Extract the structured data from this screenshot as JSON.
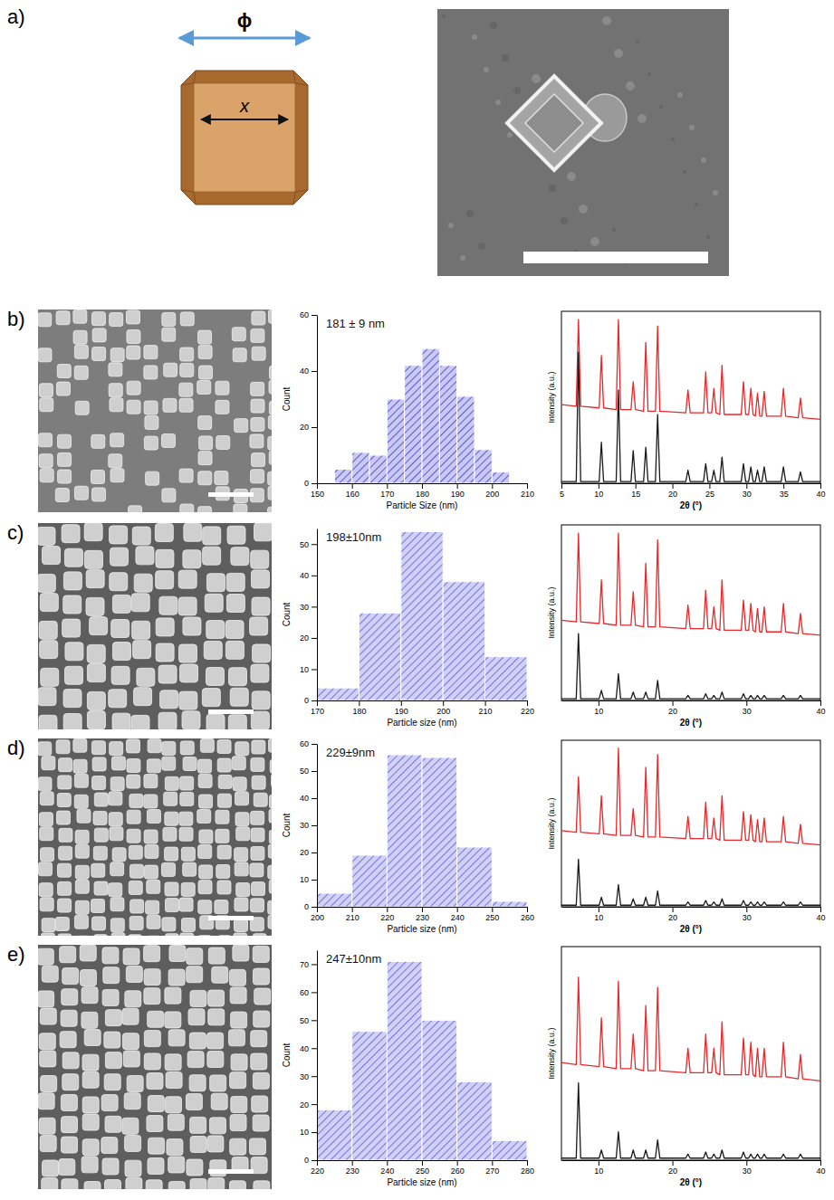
{
  "panels": {
    "labels": [
      "a)",
      "b)",
      "c)",
      "d)",
      "e)"
    ],
    "diagram_labels": [
      "ϕ",
      "x"
    ]
  },
  "chart_data": [
    {
      "type": "histogram",
      "title": "181 ± 9 nm",
      "x_label": "Particle Size (nm)",
      "y_label": "Count",
      "color": "#3b3bd1",
      "bins": [
        155,
        160,
        165,
        170,
        175,
        180,
        185,
        190,
        195,
        200,
        205
      ],
      "values": [
        5,
        11,
        10,
        30,
        42,
        48,
        42,
        31,
        12,
        4
      ],
      "xlim": [
        150,
        210
      ],
      "xticks": [
        150,
        160,
        170,
        180,
        190,
        200,
        210
      ],
      "ylim": [
        0,
        60
      ],
      "yticks": [
        0,
        20,
        40,
        60
      ]
    },
    {
      "type": "line",
      "x_label": "2θ (°)",
      "y_label": "Intensity (a.u.)",
      "tick_labels": "x",
      "x": [
        5,
        7.0,
        7.3,
        7.6,
        10.1,
        10.4,
        10.7,
        12.4,
        12.7,
        13.0,
        14.4,
        14.7,
        15.0,
        16.1,
        16.4,
        16.7,
        17.7,
        18.0,
        18.3,
        21.8,
        22.1,
        22.4,
        24.2,
        24.5,
        24.8,
        25.3,
        25.6,
        25.9,
        26.4,
        26.7,
        27.0,
        29.3,
        29.6,
        29.9,
        30.3,
        30.6,
        30.9,
        31.2,
        31.5,
        31.8,
        32.1,
        32.4,
        32.7,
        34.7,
        35.0,
        35.3,
        37.0,
        37.3,
        37.6,
        40
      ],
      "series": [
        {
          "color": "#e8282b",
          "values": [
            48,
            47,
            100,
            47,
            46,
            78,
            46,
            45,
            100,
            45,
            45,
            62,
            45,
            44,
            86,
            44,
            44,
            96,
            44,
            43,
            57,
            43,
            43,
            68,
            43,
            43,
            58,
            43,
            42,
            72,
            42,
            42,
            62,
            42,
            42,
            58,
            42,
            41,
            55,
            41,
            41,
            56,
            41,
            41,
            58,
            41,
            40,
            52,
            40,
            39
          ]
        },
        {
          "color": "#1a1a1a",
          "values": [
            1,
            1,
            80,
            1,
            1,
            25,
            1,
            1,
            57,
            1,
            1,
            20,
            1,
            1,
            22,
            1,
            1,
            42,
            1,
            1,
            8,
            1,
            1,
            12,
            1,
            1,
            8,
            1,
            1,
            16,
            1,
            1,
            12,
            1,
            1,
            10,
            1,
            1,
            8,
            1,
            1,
            10,
            1,
            1,
            10,
            1,
            1,
            7,
            1,
            1
          ]
        }
      ],
      "xlim": [
        5,
        40
      ],
      "xticks": [
        5,
        10,
        15,
        20,
        25,
        30,
        35,
        40
      ],
      "ylim": [
        0,
        105
      ]
    },
    {
      "type": "histogram",
      "title": "198±10nm",
      "x_label": "Particle size (nm)",
      "y_label": "Count",
      "color": "#5a5ae0",
      "bins": [
        170,
        180,
        190,
        200,
        210,
        220
      ],
      "values": [
        4,
        28,
        54,
        38,
        14
      ],
      "xlim": [
        170,
        220
      ],
      "xticks": [
        170,
        180,
        190,
        200,
        210,
        220
      ],
      "ylim": [
        0,
        55
      ],
      "yticks": [
        0,
        10,
        20,
        30,
        40,
        50
      ]
    },
    {
      "type": "line",
      "x_label": "2θ (°)",
      "y_label": "Intensity (a.u.)",
      "tick_labels": "x",
      "x": [
        5,
        7.0,
        7.3,
        7.6,
        10.1,
        10.4,
        10.7,
        12.4,
        12.7,
        13.0,
        14.4,
        14.7,
        15.0,
        16.1,
        16.4,
        16.7,
        17.7,
        18.0,
        18.3,
        21.8,
        22.1,
        22.4,
        24.2,
        24.5,
        24.8,
        25.3,
        25.6,
        25.9,
        26.4,
        26.7,
        27.0,
        29.3,
        29.6,
        29.9,
        30.3,
        30.6,
        30.9,
        31.2,
        31.5,
        31.8,
        32.1,
        32.4,
        32.7,
        34.7,
        35.0,
        35.3,
        37.0,
        37.3,
        37.6,
        40
      ],
      "series": [
        {
          "color": "#e8282b",
          "values": [
            48,
            47,
            100,
            47,
            46,
            72,
            46,
            45,
            100,
            45,
            45,
            65,
            45,
            44,
            82,
            44,
            44,
            96,
            44,
            43,
            57,
            43,
            43,
            66,
            43,
            43,
            56,
            43,
            42,
            72,
            42,
            42,
            60,
            42,
            42,
            58,
            42,
            41,
            55,
            41,
            41,
            56,
            41,
            41,
            58,
            41,
            40,
            52,
            40,
            39
          ]
        },
        {
          "color": "#1a1a1a",
          "values": [
            1,
            1,
            40,
            1,
            1,
            6,
            1,
            1,
            16,
            1,
            1,
            5,
            1,
            1,
            5,
            1,
            1,
            12,
            1,
            1,
            3,
            1,
            1,
            4,
            1,
            1,
            3,
            1,
            1,
            5,
            1,
            1,
            4,
            1,
            1,
            3,
            1,
            1,
            3,
            1,
            1,
            3,
            1,
            1,
            3,
            1,
            1,
            3,
            1,
            1
          ]
        }
      ],
      "xlim": [
        5,
        40
      ],
      "xticks": [
        10,
        20,
        30,
        40
      ],
      "ylim": [
        0,
        105
      ]
    },
    {
      "type": "histogram",
      "title": "229±9nm",
      "x_label": "Particle size (nm)",
      "y_label": "Count",
      "color": "#5a5ae0",
      "bins": [
        200,
        210,
        220,
        230,
        240,
        250,
        260
      ],
      "values": [
        5,
        19,
        56,
        55,
        22,
        2
      ],
      "xlim": [
        200,
        260
      ],
      "xticks": [
        200,
        210,
        220,
        230,
        240,
        250,
        260
      ],
      "ylim": [
        0,
        60
      ],
      "yticks": [
        0,
        10,
        20,
        30,
        40,
        50,
        60
      ]
    },
    {
      "type": "line",
      "x_label": "2θ (°)",
      "y_label": "Intensity (a.u.)",
      "tick_labels": "x",
      "x": [
        5,
        7.0,
        7.3,
        7.6,
        10.1,
        10.4,
        10.7,
        12.4,
        12.7,
        13.0,
        14.4,
        14.7,
        15.0,
        16.1,
        16.4,
        16.7,
        17.7,
        18.0,
        18.3,
        21.8,
        22.1,
        22.4,
        24.2,
        24.5,
        24.8,
        25.3,
        25.6,
        25.9,
        26.4,
        26.7,
        27.0,
        29.3,
        29.6,
        29.9,
        30.3,
        30.6,
        30.9,
        31.2,
        31.5,
        31.8,
        32.1,
        32.4,
        32.7,
        34.7,
        35.0,
        35.3,
        37.0,
        37.3,
        37.6,
        40
      ],
      "series": [
        {
          "color": "#e8282b",
          "values": [
            48,
            47,
            82,
            47,
            46,
            70,
            46,
            45,
            100,
            45,
            45,
            62,
            45,
            44,
            88,
            44,
            44,
            96,
            44,
            43,
            57,
            43,
            43,
            66,
            43,
            43,
            56,
            43,
            42,
            70,
            42,
            42,
            60,
            42,
            42,
            58,
            42,
            41,
            55,
            41,
            41,
            56,
            41,
            41,
            57,
            41,
            40,
            52,
            40,
            39
          ]
        },
        {
          "color": "#1a1a1a",
          "values": [
            1,
            1,
            30,
            1,
            1,
            6,
            1,
            1,
            14,
            1,
            1,
            5,
            1,
            1,
            6,
            1,
            1,
            10,
            1,
            1,
            3,
            1,
            1,
            4,
            1,
            1,
            3,
            1,
            1,
            5,
            1,
            1,
            4,
            1,
            1,
            3,
            1,
            1,
            3,
            1,
            1,
            3,
            1,
            1,
            3,
            1,
            1,
            3,
            1,
            1
          ]
        }
      ],
      "xlim": [
        5,
        40
      ],
      "xticks": [
        10,
        20,
        30,
        40
      ],
      "ylim": [
        0,
        105
      ]
    },
    {
      "type": "histogram",
      "title": "247±10nm",
      "x_label": "Particle size (nm)",
      "y_label": "Count",
      "color": "#5a5ae0",
      "bins": [
        220,
        230,
        240,
        250,
        260,
        270,
        280
      ],
      "values": [
        18,
        46,
        71,
        50,
        28,
        7
      ],
      "xlim": [
        220,
        280
      ],
      "xticks": [
        220,
        230,
        240,
        250,
        260,
        270,
        280
      ],
      "ylim": [
        0,
        75
      ],
      "yticks": [
        0,
        10,
        20,
        30,
        40,
        50,
        60,
        70
      ]
    },
    {
      "type": "line",
      "x_label": "2θ (°)",
      "y_label": "Intensity (a.u.)",
      "tick_labels": "x",
      "x": [
        5,
        7.0,
        7.3,
        7.6,
        10.1,
        10.4,
        10.7,
        12.4,
        12.7,
        13.0,
        14.4,
        14.7,
        15.0,
        16.1,
        16.4,
        16.7,
        17.7,
        18.0,
        18.3,
        21.8,
        22.1,
        22.4,
        24.2,
        24.5,
        24.8,
        25.3,
        25.6,
        25.9,
        26.4,
        26.7,
        27.0,
        29.3,
        29.6,
        29.9,
        30.3,
        30.6,
        30.9,
        31.2,
        31.5,
        31.8,
        32.1,
        32.4,
        32.7,
        34.7,
        35.0,
        35.3,
        37.0,
        37.3,
        37.6,
        40
      ],
      "series": [
        {
          "color": "#e8282b",
          "values": [
            48,
            47,
            90,
            47,
            46,
            70,
            46,
            45,
            88,
            45,
            45,
            62,
            45,
            44,
            76,
            44,
            44,
            85,
            44,
            43,
            55,
            43,
            43,
            62,
            43,
            43,
            55,
            43,
            42,
            68,
            42,
            42,
            60,
            42,
            42,
            58,
            42,
            41,
            55,
            41,
            41,
            55,
            41,
            41,
            58,
            41,
            40,
            52,
            40,
            39
          ]
        },
        {
          "color": "#1a1a1a",
          "values": [
            1,
            1,
            38,
            1,
            1,
            5,
            1,
            1,
            14,
            1,
            1,
            5,
            1,
            1,
            5,
            1,
            1,
            10,
            1,
            1,
            3,
            1,
            1,
            4,
            1,
            1,
            3,
            1,
            1,
            5,
            1,
            1,
            4,
            1,
            1,
            3,
            1,
            1,
            3,
            1,
            1,
            3,
            1,
            1,
            3,
            1,
            1,
            3,
            1,
            1
          ]
        }
      ],
      "xlim": [
        5,
        40
      ],
      "xticks": [
        10,
        20,
        30,
        40
      ],
      "ylim": [
        0,
        105
      ]
    }
  ]
}
